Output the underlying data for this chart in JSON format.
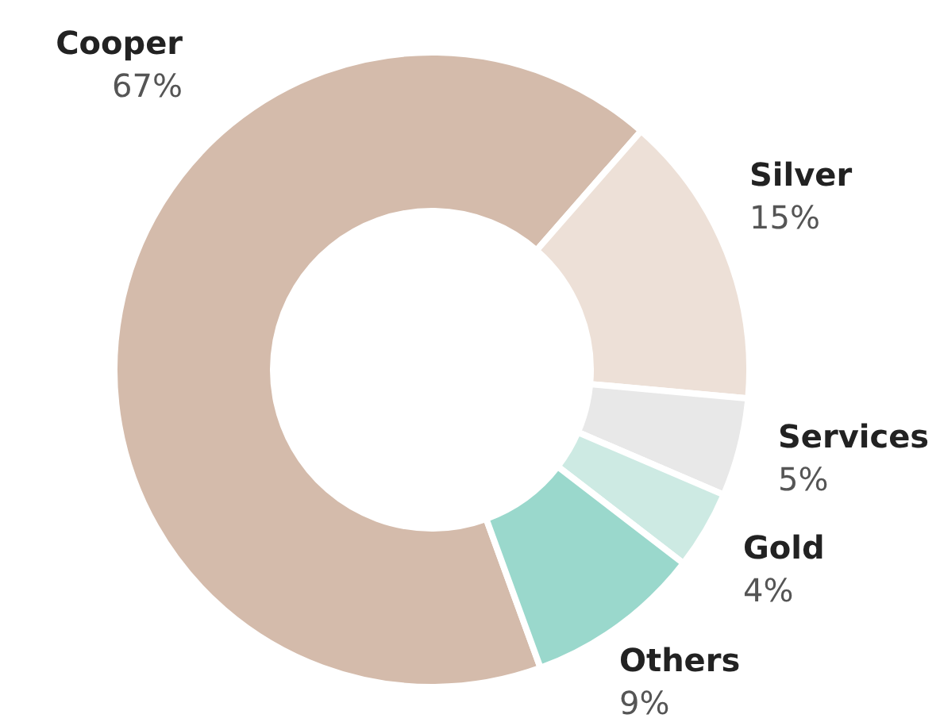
{
  "chart_data": {
    "type": "donut",
    "categories": [
      "Cooper",
      "Silver",
      "Services",
      "Gold",
      "Others"
    ],
    "values": [
      67,
      15,
      5,
      4,
      9
    ],
    "colors": [
      "#d4bbab",
      "#ede0d7",
      "#e8e8e8",
      "#cdeae3",
      "#9ad8cc"
    ],
    "value_labels": [
      "67%",
      "15%",
      "5%",
      "4%",
      "9%"
    ]
  }
}
